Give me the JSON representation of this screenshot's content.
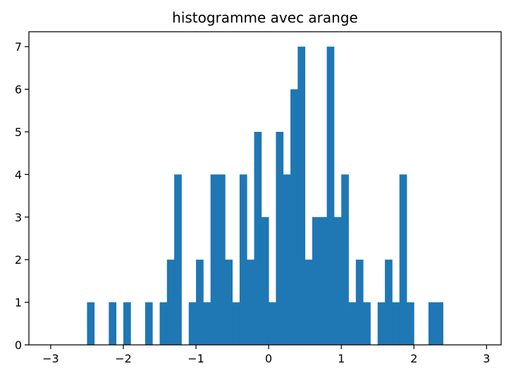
{
  "chart_data": {
    "type": "bar",
    "title": "histogramme avec arange",
    "xlabel": "",
    "ylabel": "",
    "xlim": [
      -3.3,
      3.2
    ],
    "ylim": [
      0,
      7.35
    ],
    "bin_width": 0.1,
    "xticks": [
      -3,
      -2,
      -1,
      0,
      1,
      2,
      3
    ],
    "xtick_labels": [
      "−3",
      "−2",
      "−1",
      "0",
      "1",
      "2",
      "3"
    ],
    "yticks": [
      0,
      1,
      2,
      3,
      4,
      5,
      6,
      7
    ],
    "ytick_labels": [
      "0",
      "1",
      "2",
      "3",
      "4",
      "5",
      "6",
      "7"
    ],
    "bins": [
      {
        "x0": -2.5,
        "x1": -2.4,
        "count": 1
      },
      {
        "x0": -2.2,
        "x1": -2.1,
        "count": 1
      },
      {
        "x0": -2.0,
        "x1": -1.9,
        "count": 1
      },
      {
        "x0": -1.7,
        "x1": -1.6,
        "count": 1
      },
      {
        "x0": -1.5,
        "x1": -1.4,
        "count": 1
      },
      {
        "x0": -1.4,
        "x1": -1.3,
        "count": 2
      },
      {
        "x0": -1.3,
        "x1": -1.2,
        "count": 4
      },
      {
        "x0": -1.1,
        "x1": -1.0,
        "count": 1
      },
      {
        "x0": -1.0,
        "x1": -0.9,
        "count": 2
      },
      {
        "x0": -0.9,
        "x1": -0.8,
        "count": 1
      },
      {
        "x0": -0.8,
        "x1": -0.7,
        "count": 4
      },
      {
        "x0": -0.7,
        "x1": -0.6,
        "count": 4
      },
      {
        "x0": -0.6,
        "x1": -0.5,
        "count": 2
      },
      {
        "x0": -0.5,
        "x1": -0.4,
        "count": 1
      },
      {
        "x0": -0.4,
        "x1": -0.3,
        "count": 4
      },
      {
        "x0": -0.3,
        "x1": -0.2,
        "count": 2
      },
      {
        "x0": -0.2,
        "x1": -0.1,
        "count": 5
      },
      {
        "x0": -0.1,
        "x1": 0.0,
        "count": 3
      },
      {
        "x0": 0.0,
        "x1": 0.1,
        "count": 1
      },
      {
        "x0": 0.1,
        "x1": 0.2,
        "count": 5
      },
      {
        "x0": 0.2,
        "x1": 0.3,
        "count": 4
      },
      {
        "x0": 0.3,
        "x1": 0.4,
        "count": 6
      },
      {
        "x0": 0.4,
        "x1": 0.5,
        "count": 7
      },
      {
        "x0": 0.5,
        "x1": 0.6,
        "count": 2
      },
      {
        "x0": 0.6,
        "x1": 0.7,
        "count": 3
      },
      {
        "x0": 0.7,
        "x1": 0.8,
        "count": 3
      },
      {
        "x0": 0.8,
        "x1": 0.9,
        "count": 7
      },
      {
        "x0": 0.9,
        "x1": 1.0,
        "count": 3
      },
      {
        "x0": 1.0,
        "x1": 1.1,
        "count": 4
      },
      {
        "x0": 1.1,
        "x1": 1.2,
        "count": 1
      },
      {
        "x0": 1.2,
        "x1": 1.3,
        "count": 2
      },
      {
        "x0": 1.3,
        "x1": 1.4,
        "count": 1
      },
      {
        "x0": 1.5,
        "x1": 1.6,
        "count": 1
      },
      {
        "x0": 1.6,
        "x1": 1.7,
        "count": 2
      },
      {
        "x0": 1.7,
        "x1": 1.8,
        "count": 1
      },
      {
        "x0": 1.8,
        "x1": 1.9,
        "count": 4
      },
      {
        "x0": 1.9,
        "x1": 2.0,
        "count": 1
      },
      {
        "x0": 2.2,
        "x1": 2.3,
        "count": 1
      },
      {
        "x0": 2.3,
        "x1": 2.4,
        "count": 1
      }
    ],
    "bar_color": "#1f77b4",
    "grid": false,
    "legend": "none"
  }
}
